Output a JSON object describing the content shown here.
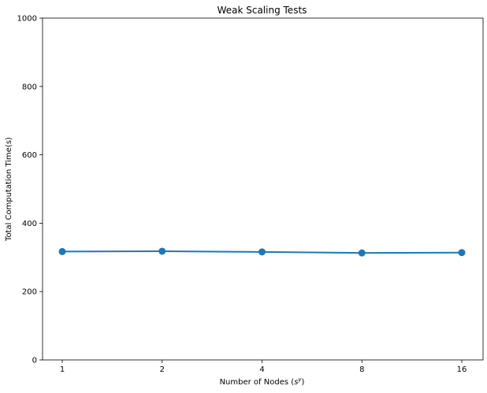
{
  "chart_data": {
    "type": "line",
    "title": "Weak Scaling Tests",
    "xlabel": "Number of Nodes (",
    "xlabel_math": "s",
    "xlabel_sup": "y",
    "xlabel_close": ")",
    "ylabel": "Total Computation Time(s)",
    "categories": [
      "1",
      "2",
      "4",
      "8",
      "16"
    ],
    "series": [
      {
        "values": [
          317,
          318,
          316,
          313,
          314
        ],
        "color": "#1f77b4"
      }
    ],
    "ylim": [
      0,
      1000
    ],
    "yticks": [
      "0",
      "200",
      "400",
      "600",
      "800",
      "1000"
    ],
    "grid": false,
    "legend": "none"
  }
}
